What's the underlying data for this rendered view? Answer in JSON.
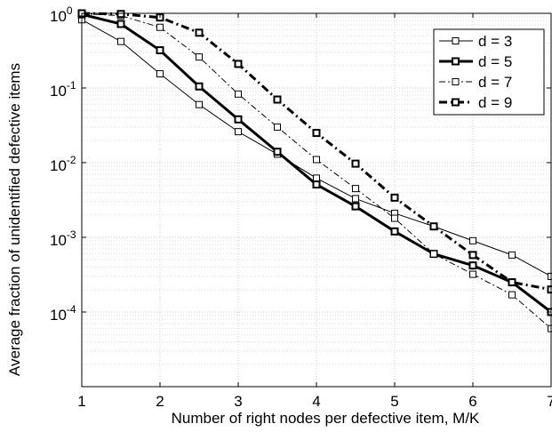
{
  "chart_data": {
    "type": "line",
    "title": "",
    "xlabel": "Number of right nodes per defective item, M/K",
    "ylabel": "Average fraction of unidentified defective items",
    "x_scale": "linear",
    "y_scale": "log",
    "xlim": [
      1,
      7
    ],
    "ylim": [
      1e-05,
      1
    ],
    "x_ticks": [
      1,
      2,
      3,
      4,
      5,
      6,
      7
    ],
    "x_tick_labels": [
      "1",
      "2",
      "3",
      "4",
      "5",
      "6",
      "7"
    ],
    "y_ticks": [
      0.0001,
      0.001,
      0.01,
      0.1,
      1
    ],
    "y_tick_labels": [
      {
        "base": "10",
        "exp": "-4"
      },
      {
        "base": "10",
        "exp": "-3"
      },
      {
        "base": "10",
        "exp": "-2"
      },
      {
        "base": "10",
        "exp": "-1"
      },
      {
        "base": "10",
        "exp": "0"
      }
    ],
    "grid": true,
    "legend_position": "top-right",
    "x": [
      1,
      1.5,
      2,
      2.5,
      3,
      3.5,
      4,
      4.5,
      5,
      5.5,
      6,
      6.5,
      7
    ],
    "series": [
      {
        "name": "d = 3",
        "line_style": "solid",
        "weight": "thin",
        "marker": "square",
        "values": [
          0.82,
          0.42,
          0.155,
          0.06,
          0.026,
          0.013,
          0.0062,
          0.0033,
          0.0021,
          0.0014,
          0.0009,
          0.00058,
          0.0003
        ]
      },
      {
        "name": "d = 5",
        "line_style": "solid",
        "weight": "thick",
        "marker": "square",
        "values": [
          0.97,
          0.72,
          0.32,
          0.105,
          0.038,
          0.014,
          0.0051,
          0.0026,
          0.0012,
          0.0006,
          0.00042,
          0.00025,
          0.0001
        ]
      },
      {
        "name": "d = 7",
        "line_style": "dashdot",
        "weight": "thin",
        "marker": "square",
        "values": [
          0.99,
          0.93,
          0.65,
          0.26,
          0.083,
          0.03,
          0.011,
          0.0045,
          0.0018,
          0.0006,
          0.00032,
          0.00017,
          6e-05
        ]
      },
      {
        "name": "d = 9",
        "line_style": "dashdot",
        "weight": "thick",
        "marker": "square",
        "values": [
          1.0,
          0.98,
          0.88,
          0.55,
          0.21,
          0.07,
          0.025,
          0.0097,
          0.0034,
          0.0014,
          0.00058,
          0.00025,
          0.0002
        ]
      }
    ]
  }
}
